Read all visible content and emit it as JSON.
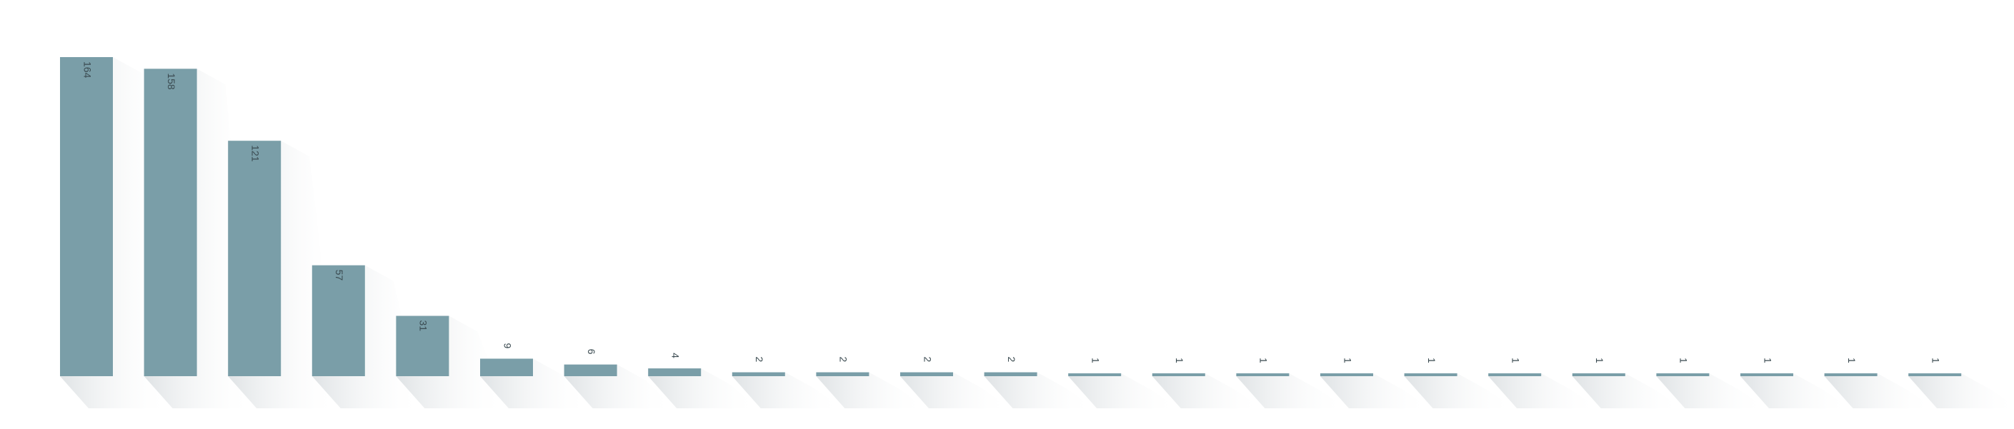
{
  "chart_data": {
    "type": "bar",
    "title": "",
    "xlabel": "",
    "ylabel": "",
    "grid": false,
    "ylim": [
      0,
      164
    ],
    "categories": [
      "",
      "",
      "",
      "",
      "",
      "",
      "",
      "",
      "",
      "",
      "",
      "",
      "",
      "",
      "",
      "",
      "",
      "",
      "",
      "",
      "",
      "",
      ""
    ],
    "values": [
      164,
      158,
      121,
      57,
      31,
      9,
      6,
      4,
      2,
      2,
      2,
      2,
      1,
      1,
      1,
      1,
      1,
      1,
      1,
      1,
      1,
      1,
      1
    ],
    "colors": {
      "bar": "#7a9ea8",
      "shadow": "#cfd5d8"
    }
  }
}
